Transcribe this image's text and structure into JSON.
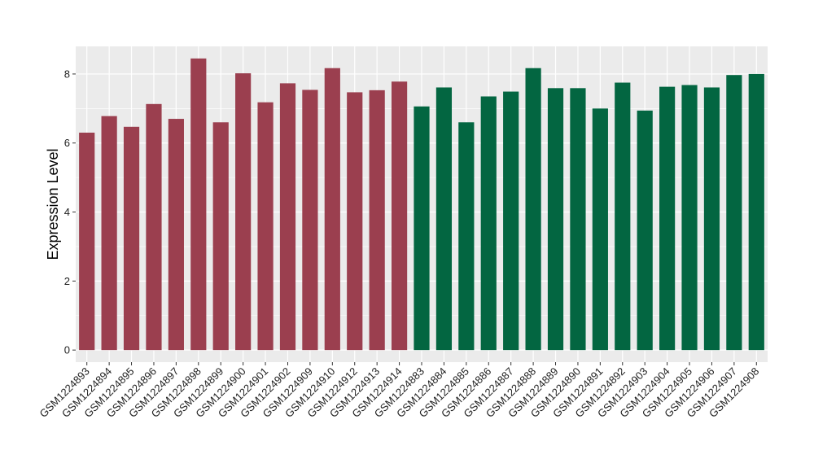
{
  "chart_data": {
    "type": "bar",
    "title": "",
    "xlabel": "",
    "ylabel": "Expression Level",
    "ylim": [
      -0.35,
      8.8
    ],
    "yticks": [
      0,
      2,
      4,
      6,
      8
    ],
    "grid": true,
    "legend": "none",
    "colors": {
      "group1": "#9b3f4f",
      "group2": "#036641",
      "panel": "#ebebeb",
      "grid": "#ffffff"
    },
    "categories": [
      "GSM1224893",
      "GSM1224894",
      "GSM1224895",
      "GSM1224896",
      "GSM1224897",
      "GSM1224898",
      "GSM1224899",
      "GSM1224900",
      "GSM1224901",
      "GSM1224902",
      "GSM1224909",
      "GSM1224910",
      "GSM1224912",
      "GSM1224913",
      "GSM1224914",
      "GSM1224883",
      "GSM1224884",
      "GSM1224885",
      "GSM1224886",
      "GSM1224887",
      "GSM1224888",
      "GSM1224889",
      "GSM1224890",
      "GSM1224891",
      "GSM1224892",
      "GSM1224903",
      "GSM1224904",
      "GSM1224905",
      "GSM1224906",
      "GSM1224907",
      "GSM1224908"
    ],
    "values": [
      6.3,
      6.78,
      6.47,
      7.13,
      6.7,
      8.45,
      6.6,
      8.02,
      7.18,
      7.73,
      7.54,
      8.17,
      7.47,
      7.53,
      7.78,
      7.06,
      7.61,
      6.6,
      7.35,
      7.49,
      8.17,
      7.59,
      7.59,
      7.0,
      7.75,
      6.94,
      7.63,
      7.68,
      7.61,
      7.97,
      8.0
    ],
    "groups": [
      "group1",
      "group1",
      "group1",
      "group1",
      "group1",
      "group1",
      "group1",
      "group1",
      "group1",
      "group1",
      "group1",
      "group1",
      "group1",
      "group1",
      "group1",
      "group2",
      "group2",
      "group2",
      "group2",
      "group2",
      "group2",
      "group2",
      "group2",
      "group2",
      "group2",
      "group2",
      "group2",
      "group2",
      "group2",
      "group2",
      "group2"
    ]
  }
}
